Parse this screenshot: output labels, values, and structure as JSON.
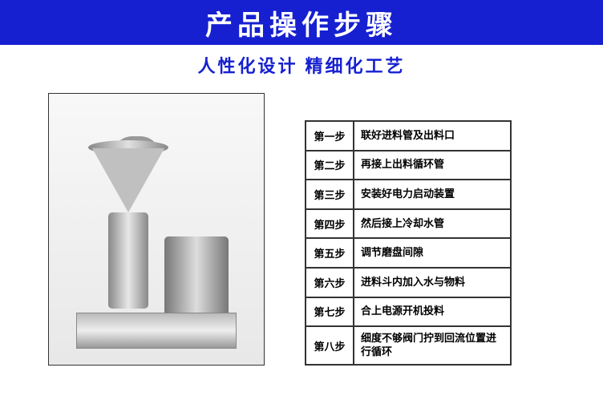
{
  "header": {
    "title": "产品操作步骤",
    "background_color": "#1620d0",
    "text_color": "#ffffff",
    "font_size": 34
  },
  "subtitle": {
    "text": "人性化设计 精细化工艺",
    "text_color": "#1620d0",
    "font_size": 22
  },
  "steps": [
    {
      "label": "第一步",
      "description": "联好进料管及出料口"
    },
    {
      "label": "第二步",
      "description": "再接上出料循环管"
    },
    {
      "label": "第三步",
      "description": "安装好电力启动装置"
    },
    {
      "label": "第四步",
      "description": "然后接上冷却水管"
    },
    {
      "label": "第五步",
      "description": "调节磨盘间隙"
    },
    {
      "label": "第六步",
      "description": "进料斗内加入水与物料"
    },
    {
      "label": "第七步",
      "description": "合上电源开机投料"
    },
    {
      "label": "第八步",
      "description": "细度不够阀门拧到回流位置进行循环"
    }
  ],
  "table_style": {
    "border_color": "#333333",
    "text_color": "#000000"
  }
}
